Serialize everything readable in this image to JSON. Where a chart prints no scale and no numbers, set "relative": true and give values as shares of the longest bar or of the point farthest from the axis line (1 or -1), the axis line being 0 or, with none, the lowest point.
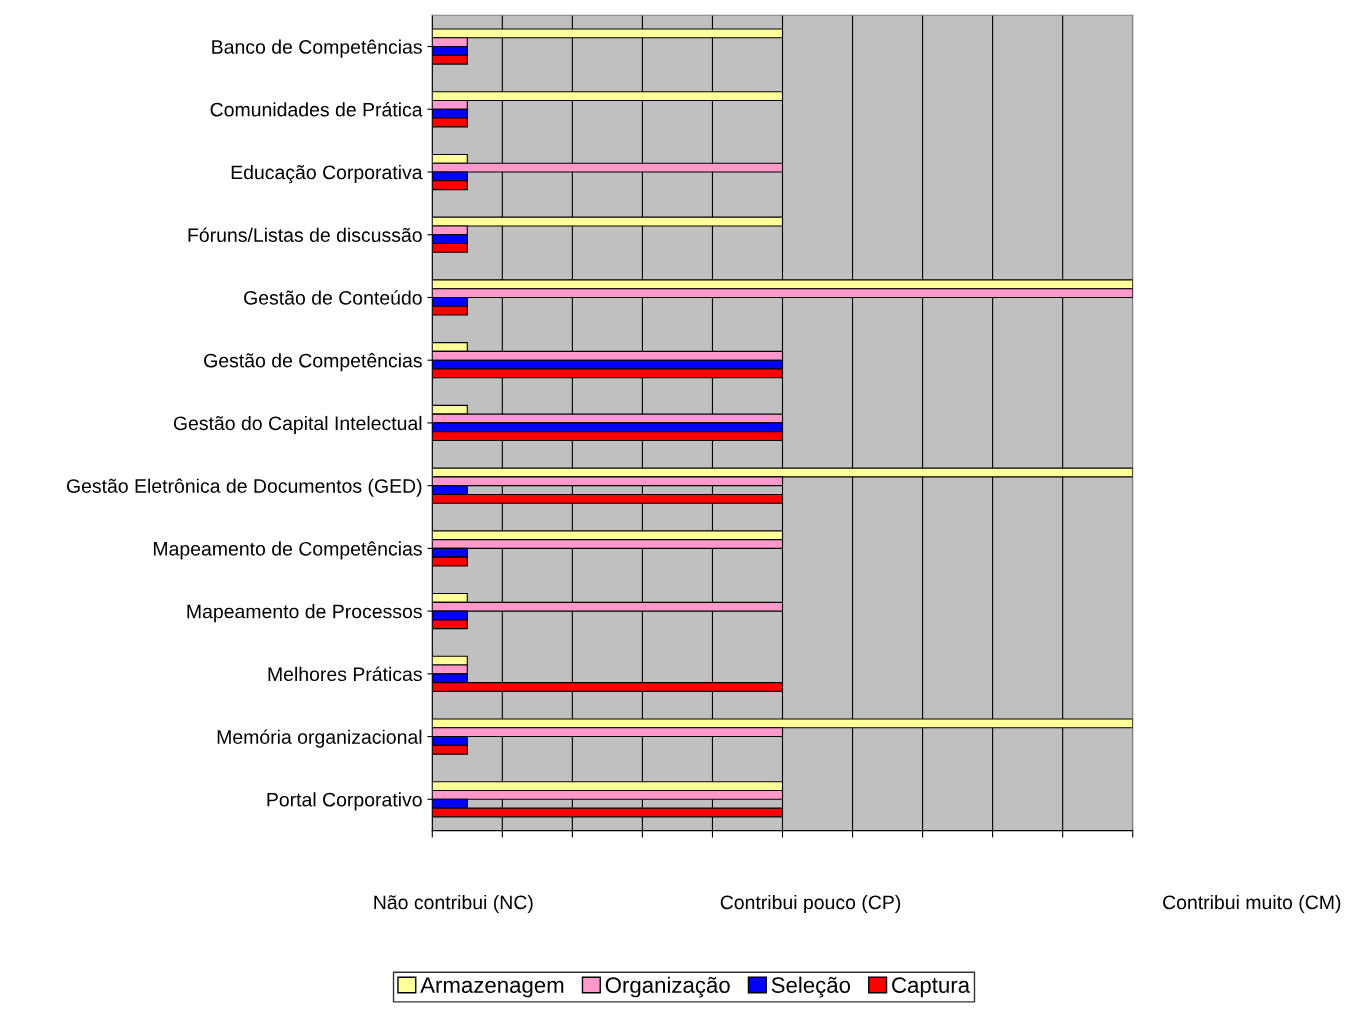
{
  "chart_data": {
    "type": "bar",
    "orientation": "horizontal",
    "relative": true,
    "categories": [
      "Banco de Competências",
      "Comunidades de Prática",
      "Educação Corporativa",
      "Fóruns/Listas de discussão",
      "Gestão de Conteúdo",
      "Gestão de Competências",
      "Gestão do Capital Intelectual",
      "Gestão Eletrônica de Documentos (GED)",
      "Mapeamento de Competências",
      "Mapeamento de Processos",
      "Melhores Práticas",
      "Memória organizacional",
      "Portal Corporativo"
    ],
    "series": [
      {
        "name": "Armazenagem",
        "color": "#ffff99",
        "values": [
          0.5,
          0.5,
          0.05,
          0.5,
          1,
          0.05,
          0.05,
          1,
          0.5,
          0.05,
          0.05,
          1,
          0.5
        ]
      },
      {
        "name": "Organização",
        "color": "#ff99cc",
        "values": [
          0.05,
          0.05,
          0.5,
          0.05,
          1,
          0.5,
          0.5,
          0.5,
          0.5,
          0.5,
          0.05,
          0.5,
          0.5
        ]
      },
      {
        "name": "Seleção",
        "color": "#0000ff",
        "values": [
          0.05,
          0.05,
          0.05,
          0.05,
          0.05,
          0.5,
          0.5,
          0.05,
          0.05,
          0.05,
          0.05,
          0.05,
          0.05
        ]
      },
      {
        "name": "Captura",
        "color": "#ff0000",
        "values": [
          0.05,
          0.05,
          0.05,
          0.05,
          0.05,
          0.5,
          0.5,
          0.5,
          0.05,
          0.05,
          0.5,
          0.05,
          0.5
        ]
      }
    ],
    "annotations": [
      "Não contribui (NC)",
      "Contribui pouco (CP)",
      "Contribui muito (CM)"
    ],
    "grid": "x",
    "legend": "bottom"
  }
}
